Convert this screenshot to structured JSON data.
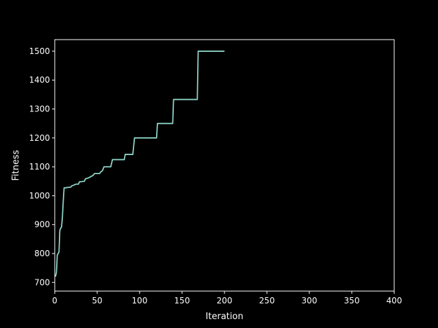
{
  "chart_data": {
    "type": "line",
    "title": "",
    "xlabel": "Iteration",
    "ylabel": "Fitness",
    "xlim": [
      0,
      400
    ],
    "ylim": [
      670,
      1540
    ],
    "xticks": [
      0,
      50,
      100,
      150,
      200,
      250,
      300,
      350,
      400
    ],
    "yticks": [
      700,
      800,
      900,
      1000,
      1100,
      1200,
      1300,
      1400,
      1500
    ],
    "grid": false,
    "colors": {
      "background": "#000000",
      "axes": "#ffffff",
      "line": "#8dd3c7"
    },
    "series": [
      {
        "points": [
          [
            0,
            722
          ],
          [
            1,
            722
          ],
          [
            2,
            735
          ],
          [
            3,
            795
          ],
          [
            4,
            800
          ],
          [
            5,
            805
          ],
          [
            6,
            880
          ],
          [
            7,
            888
          ],
          [
            8,
            892
          ],
          [
            9,
            925
          ],
          [
            10,
            980
          ],
          [
            11,
            1027
          ],
          [
            14,
            1028
          ],
          [
            19,
            1030
          ],
          [
            20,
            1034
          ],
          [
            22,
            1036
          ],
          [
            25,
            1040
          ],
          [
            28,
            1040
          ],
          [
            29,
            1048
          ],
          [
            35,
            1050
          ],
          [
            36,
            1058
          ],
          [
            40,
            1062
          ],
          [
            43,
            1067
          ],
          [
            45,
            1070
          ],
          [
            47,
            1077
          ],
          [
            53,
            1077
          ],
          [
            54,
            1082
          ],
          [
            56,
            1086
          ],
          [
            57,
            1092
          ],
          [
            58,
            1100
          ],
          [
            66,
            1100
          ],
          [
            68,
            1125
          ],
          [
            82,
            1125
          ],
          [
            83,
            1143
          ],
          [
            92,
            1143
          ],
          [
            94,
            1200
          ],
          [
            120,
            1200
          ],
          [
            121,
            1250
          ],
          [
            139,
            1250
          ],
          [
            140,
            1333
          ],
          [
            168,
            1333
          ],
          [
            169,
            1500
          ],
          [
            200,
            1500
          ]
        ]
      }
    ]
  }
}
